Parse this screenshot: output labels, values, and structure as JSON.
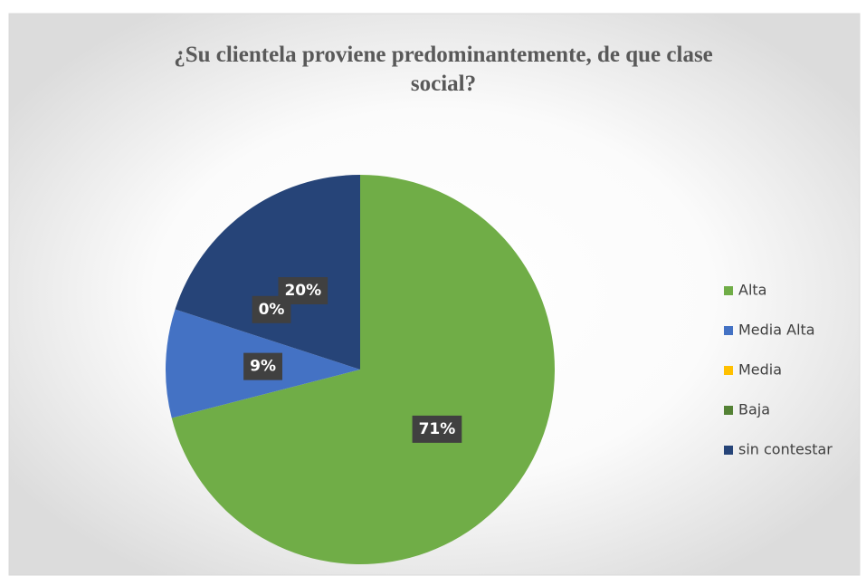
{
  "chart_data": {
    "type": "pie",
    "title": "¿Su clientela proviene predominantemente, de que clase social?",
    "categories": [
      "Alta",
      "Media Alta",
      "Media",
      "Baja",
      "sin contestar"
    ],
    "values": [
      71,
      9,
      0,
      0,
      20
    ],
    "value_labels": [
      "71%",
      "9%",
      "0%",
      null,
      "20%"
    ],
    "colors": [
      "#70ad47",
      "#4472c4",
      "#ffc000",
      "#548235",
      "#264478"
    ],
    "legend": "right"
  }
}
